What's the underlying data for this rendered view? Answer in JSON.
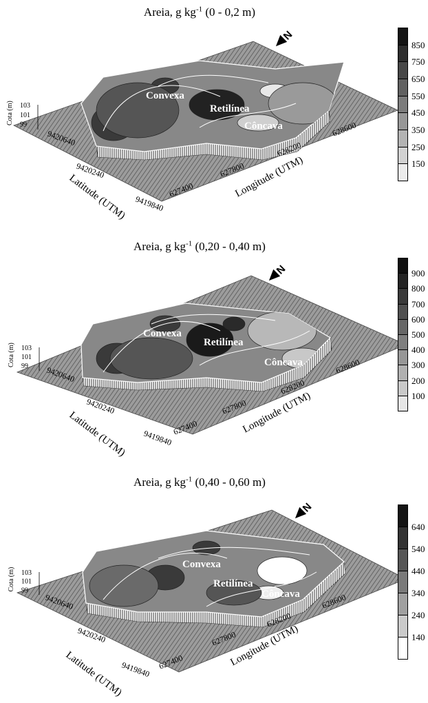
{
  "panels": [
    {
      "title_prefix": "Areia, g kg",
      "title_sup": "-1",
      "title_suffix": " (0 - 0,2 m)",
      "legend": {
        "labels": [
          "850",
          "750",
          "650",
          "550",
          "450",
          "350",
          "250",
          "150"
        ],
        "colors": [
          "#141414",
          "#2e2e2e",
          "#474747",
          "#616161",
          "#7c7c7c",
          "#979797",
          "#b3b3b3",
          "#d2d2d2",
          "#ececec"
        ]
      },
      "regions": [
        "Convexa",
        "Retilínea",
        "Côncava"
      ],
      "cota_axis": {
        "title": "Cota (m)",
        "ticks": [
          "103",
          "101",
          "99"
        ]
      },
      "latitude": {
        "title": "Latitude (UTM)",
        "ticks": [
          "9420640",
          "9420240",
          "9419840"
        ]
      },
      "longitude": {
        "title": "Longitude (UTM)",
        "ticks": [
          "627400",
          "627800",
          "628200",
          "628600"
        ]
      }
    },
    {
      "title_prefix": "Areia, g kg",
      "title_sup": "-1",
      "title_suffix": " (0,20 - 0,40 m)",
      "legend": {
        "labels": [
          "900",
          "800",
          "700",
          "600",
          "500",
          "400",
          "300",
          "200",
          "100"
        ],
        "colors": [
          "#101010",
          "#252525",
          "#3a3a3a",
          "#505050",
          "#676767",
          "#7f7f7f",
          "#979797",
          "#b0b0b0",
          "#c9c9c9",
          "#e6e6e6"
        ]
      },
      "regions": [
        "Convexa",
        "Retilínea",
        "Côncava"
      ],
      "cota_axis": {
        "title": "Cota (m)",
        "ticks": [
          "103",
          "101",
          "99"
        ]
      },
      "latitude": {
        "title": "Latitude (UTM)",
        "ticks": [
          "9420640",
          "9420240",
          "9419840"
        ]
      },
      "longitude": {
        "title": "Longitude (UTM)",
        "ticks": [
          "627400",
          "627800",
          "628200",
          "628600"
        ]
      }
    },
    {
      "title_prefix": "Areia, g kg",
      "title_sup": "-1",
      "title_suffix": " (0,40 - 0,60 m)",
      "legend": {
        "labels": [
          "640",
          "540",
          "440",
          "340",
          "240",
          "140"
        ],
        "colors": [
          "#141414",
          "#333333",
          "#565656",
          "#7a7a7a",
          "#a0a0a0",
          "#cacaca",
          "#ffffff"
        ]
      },
      "regions": [
        "Convexa",
        "Retilínea",
        "Côncava"
      ],
      "cota_axis": {
        "title": "Cota (m)",
        "ticks": [
          "103",
          "101",
          "99"
        ]
      },
      "latitude": {
        "title": "Latitude (UTM)",
        "ticks": [
          "9420640",
          "9420240",
          "9419840"
        ]
      },
      "longitude": {
        "title": "Longitude (UTM)",
        "ticks": [
          "627400",
          "627800",
          "628200",
          "628600"
        ]
      }
    }
  ],
  "north_symbol": "N",
  "colors": {
    "surface_hatch": "#606060",
    "surface_base": "#9a9a9a",
    "contour": "#ffffff"
  }
}
